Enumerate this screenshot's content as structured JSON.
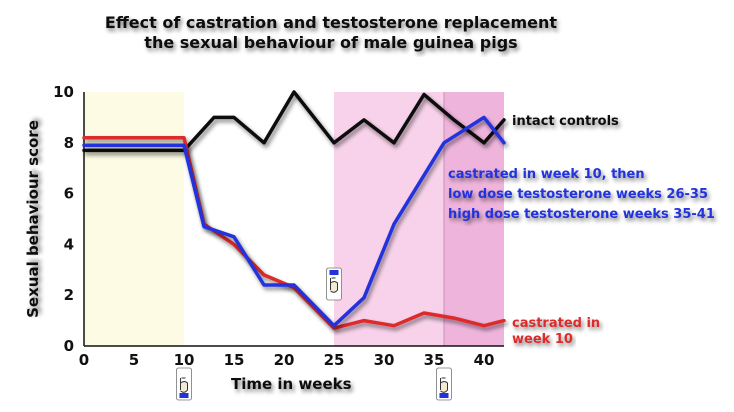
{
  "chart_data": {
    "type": "line",
    "title_line1": "Effect of castration and testosterone replacement",
    "title_line2": "the sexual behaviour of male guinea pigs",
    "xlabel": "Time in weeks",
    "ylabel": "Sexual behaviour score",
    "xlim": [
      0,
      42
    ],
    "ylim": [
      0,
      10
    ],
    "x_ticks": [
      0,
      5,
      10,
      15,
      20,
      25,
      30,
      35,
      40
    ],
    "y_ticks": [
      0,
      2,
      4,
      6,
      8,
      10
    ],
    "grid": false,
    "legend": "none (labels placed next to lines)",
    "shaded_regions": [
      {
        "from": 0,
        "to": 10,
        "color": "#fdfbe4"
      },
      {
        "from": 25,
        "to": 36,
        "color": "#f8d2ea"
      },
      {
        "from": 36,
        "to": 44,
        "color": "#efb4dc"
      }
    ],
    "markers": [
      {
        "x": 10,
        "position": "below-axis",
        "icon": "pointing-hand-icon"
      },
      {
        "x": 25,
        "position": "above-line",
        "icon": "pointing-hand-icon"
      },
      {
        "x": 36,
        "position": "below-axis",
        "icon": "pointing-hand-icon"
      }
    ],
    "series": [
      {
        "name": "intact controls",
        "color": "#111111",
        "x": [
          0,
          10,
          13,
          15,
          18,
          21,
          25,
          28,
          31,
          34,
          37,
          40,
          42
        ],
        "y": [
          7.7,
          7.7,
          9.0,
          9.0,
          8.0,
          10.0,
          8.0,
          8.9,
          8.0,
          9.9,
          8.9,
          8.0,
          8.9
        ]
      },
      {
        "name": "castrated in week 10",
        "color": "#dd2a2a",
        "x": [
          0,
          10,
          12,
          15,
          18,
          21,
          25,
          28,
          31,
          34,
          37,
          40,
          42
        ],
        "y": [
          8.2,
          8.2,
          4.8,
          4.0,
          2.8,
          2.3,
          0.7,
          1.0,
          0.8,
          1.3,
          1.1,
          0.8,
          1.0
        ]
      },
      {
        "name": "castrated in week 10, then low dose testosterone weeks 26-35 high dose testosterone weeks 35-41",
        "color": "#2233dd",
        "x": [
          0,
          10,
          12,
          15,
          18,
          21,
          25,
          28,
          31,
          36,
          40,
          42
        ],
        "y": [
          7.9,
          7.9,
          4.7,
          4.3,
          2.4,
          2.4,
          0.8,
          1.9,
          4.8,
          8.0,
          9.0,
          8.0
        ]
      }
    ]
  },
  "labels": {
    "intact": "intact controls",
    "castrated_line1": "castrated in",
    "castrated_line2": "week 10",
    "replacement_line1": "castrated in week 10, then",
    "replacement_line2": "low dose testosterone  weeks 26-35",
    "replacement_line3": "high dose testosterone weeks 35-41"
  }
}
